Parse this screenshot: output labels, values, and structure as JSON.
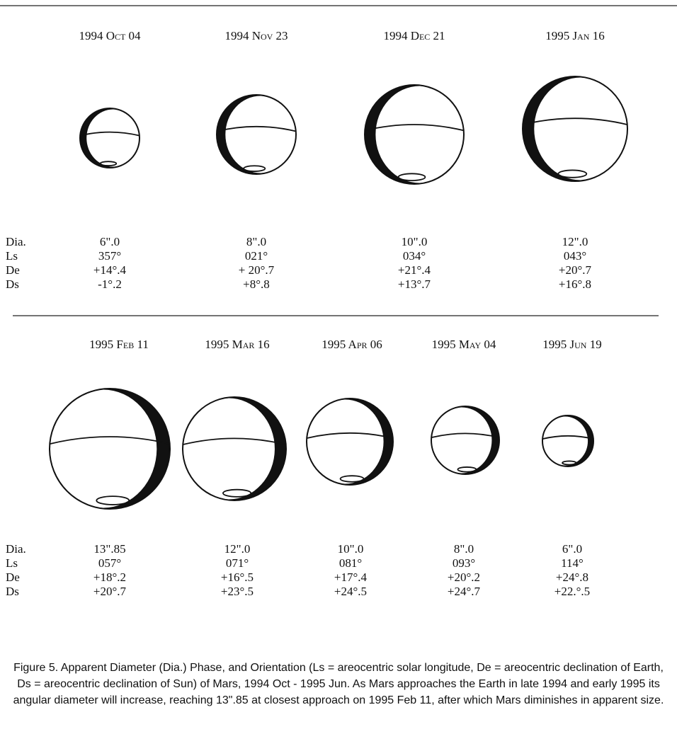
{
  "rows": [
    {
      "dates": [
        "1994 Oct 04",
        "1994 Nov 23",
        "1994 Dec 21",
        "1995 Jan 16"
      ],
      "labels": [
        "Dia.",
        "Ls",
        "De",
        "Ds"
      ],
      "columns": [
        [
          "6\".0",
          "357°",
          "+14°.4",
          "-1°.2"
        ],
        [
          "8\".0",
          "021°",
          "+ 20°.7",
          "+8°.8"
        ],
        [
          "10\".0",
          "034°",
          "+21°.4",
          "+13°.7"
        ],
        [
          "12\".0",
          "043°",
          "+20°.7",
          "+16°.8"
        ]
      ]
    },
    {
      "dates": [
        "1995 Feb 11",
        "1995 Mar 16",
        "1995 Apr 06",
        "1995 May 04",
        "1995 Jun 19"
      ],
      "labels": [
        "Dia.",
        "Ls",
        "De",
        "Ds"
      ],
      "columns": [
        [
          "13\".85",
          "057°",
          "+18°.2",
          "+20°.7"
        ],
        [
          "12\".0",
          "071°",
          "+16°.5",
          "+23°.5"
        ],
        [
          "10\".0",
          "081°",
          "+17°.4",
          "+24°.5"
        ],
        [
          "8\".0",
          "093°",
          "+20°.2",
          "+24°.7"
        ],
        [
          "6\".0",
          "114°",
          "+24°.8",
          "+22.°.5"
        ]
      ]
    }
  ],
  "caption": "Figure 5. Apparent Diameter (Dia.) Phase, and Orientation (Ls = areocentric solar longitude, De = areocentric declination of Earth, Ds = areocentric declination of Sun) of Mars, 1994 Oct - 1995 Jun. As Mars approaches the Earth in late 1994 and early 1995 its angular diameter will increase, reaching 13\".85 at closest approach on 1995 Feb 11, after which Mars diminishes in apparent size."
}
